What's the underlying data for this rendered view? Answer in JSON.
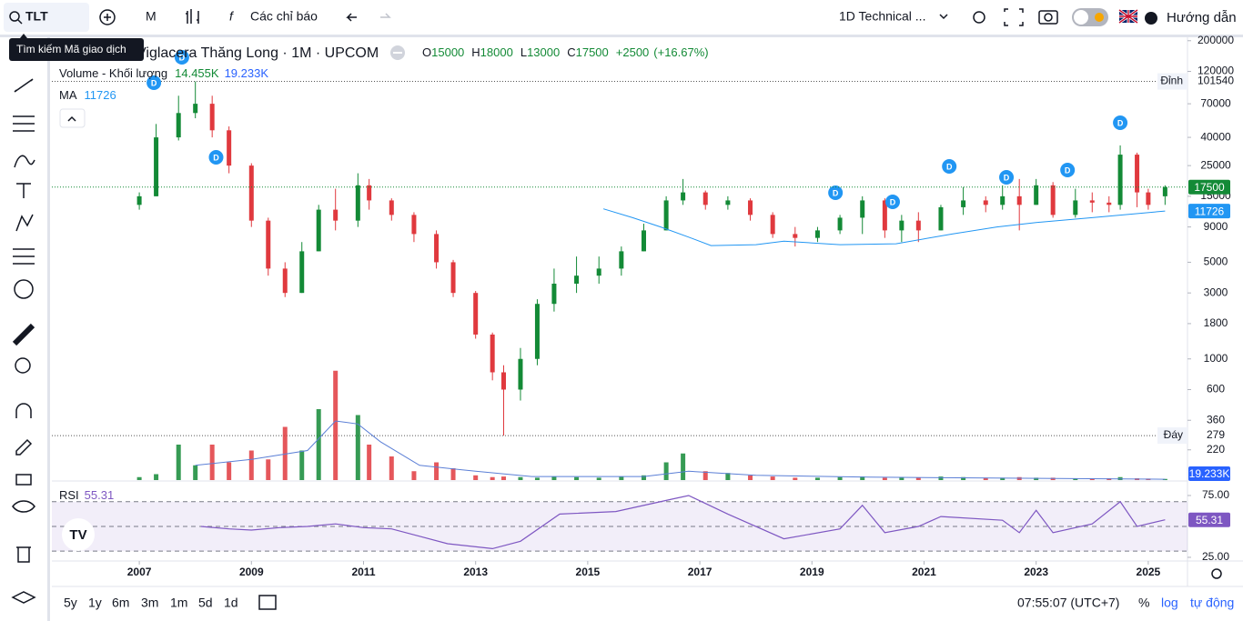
{
  "toolbar": {
    "symbol": "TLT",
    "interval": "M",
    "indicators": "Các chỉ báo",
    "layout": "1D Technical ...",
    "guide": "Hướng dẫn",
    "tooltip": "Tìm kiếm Mã giao dịch"
  },
  "bottom_bar": {
    "ranges": [
      "5y",
      "1y",
      "6m",
      "3m",
      "1m",
      "5d",
      "1d"
    ],
    "clock": "07:55:07 (UTC+7)",
    "percent": "%",
    "log": "log",
    "auto": "tự động"
  },
  "chart_data": {
    "type": "candlestick",
    "title": "Viglacera Thăng Long · 1M · UPCOM",
    "legend_letters": {
      "o": "O",
      "h": "H",
      "l": "L",
      "c": "C"
    },
    "change": {
      "value": 2500,
      "label": "+2500"
    },
    "change_pct": {
      "value": 16.67,
      "label": "(+16.67%)"
    },
    "up_color": "#138a36",
    "down_color": "#e0393e",
    "log": true,
    "xlim": [
      2005.44,
      2025.7
    ],
    "xticks": [
      2007,
      2009,
      2011,
      2013,
      2015,
      2017,
      2019,
      2021,
      2023,
      2025
    ],
    "ylim": [
      133,
      215000
    ],
    "yticks": [
      220,
      360,
      600,
      1000,
      1800,
      3000,
      5000,
      9000,
      15000,
      25000,
      40000,
      70000,
      120000,
      200000
    ],
    "x": [
      2007.0,
      2007.3,
      2007.7,
      2008.0,
      2008.3,
      2008.6,
      2009.0,
      2009.3,
      2009.6,
      2009.9,
      2010.2,
      2010.5,
      2010.9,
      2011.1,
      2011.5,
      2011.9,
      2012.3,
      2012.6,
      2013.0,
      2013.3,
      2013.5,
      2013.8,
      2014.1,
      2014.4,
      2014.8,
      2015.2,
      2015.6,
      2016.0,
      2016.4,
      2016.7,
      2017.1,
      2017.5,
      2017.9,
      2018.3,
      2018.7,
      2019.1,
      2019.5,
      2019.9,
      2020.3,
      2020.6,
      2020.9,
      2021.3,
      2021.7,
      2022.1,
      2022.4,
      2022.7,
      2023.0,
      2023.3,
      2023.7,
      2024.0,
      2024.3,
      2024.5,
      2024.8,
      2025.0,
      2025.3
    ],
    "open": [
      13000,
      15000,
      40000,
      60000,
      70000,
      45000,
      25000,
      10000,
      4500,
      3000,
      6000,
      12000,
      10000,
      18000,
      14000,
      11000,
      8000,
      5000,
      3000,
      1500,
      800,
      600,
      1000,
      2500,
      3500,
      4000,
      4500,
      6000,
      8500,
      14000,
      16000,
      13000,
      14000,
      11000,
      8000,
      7500,
      8500,
      10500,
      14000,
      8500,
      10000,
      8500,
      12500,
      14000,
      13000,
      15000,
      13000,
      18000,
      11000,
      14000,
      13500,
      13000,
      30000,
      16000,
      15000
    ],
    "high": [
      16000,
      50000,
      80000,
      101540,
      80000,
      48000,
      26000,
      10500,
      5000,
      7000,
      13000,
      17000,
      22000,
      20000,
      14500,
      11500,
      8500,
      5200,
      3100,
      1550,
      900,
      1200,
      2700,
      4500,
      5500,
      5500,
      6500,
      9500,
      15000,
      20000,
      16500,
      15000,
      14500,
      11500,
      9000,
      9000,
      11000,
      15000,
      14500,
      11000,
      11500,
      13000,
      17500,
      15000,
      18000,
      20000,
      20000,
      19000,
      17000,
      16000,
      15000,
      35000,
      31000,
      17000,
      18000
    ],
    "low": [
      12000,
      15000,
      38000,
      55000,
      40000,
      22000,
      9000,
      4000,
      2800,
      3000,
      6000,
      8500,
      9000,
      12000,
      10000,
      7000,
      4500,
      2800,
      1400,
      700,
      279,
      500,
      900,
      2200,
      3000,
      3500,
      4000,
      6000,
      8500,
      13000,
      12000,
      12000,
      10000,
      7500,
      6500,
      7000,
      8000,
      8000,
      7500,
      7000,
      7000,
      8500,
      11000,
      11500,
      12000,
      8500,
      13000,
      10500,
      10500,
      11500,
      11500,
      12000,
      12500,
      12000,
      13000
    ],
    "close": [
      15000,
      40000,
      60000,
      70000,
      45000,
      25000,
      10000,
      4500,
      3000,
      6000,
      12000,
      10000,
      18000,
      14000,
      11000,
      8000,
      5000,
      3000,
      1500,
      800,
      600,
      1000,
      2500,
      3500,
      4000,
      4500,
      6000,
      8500,
      14000,
      16000,
      13000,
      14000,
      11000,
      8000,
      7500,
      8500,
      10500,
      14000,
      8500,
      10000,
      8500,
      12500,
      14000,
      13000,
      15000,
      13000,
      18000,
      11000,
      14000,
      13500,
      13000,
      30000,
      16000,
      13000,
      17500
    ],
    "high_marker": {
      "label": "Đỉnh",
      "value": 101540
    },
    "low_marker": {
      "label": "Đáy",
      "value": 279
    },
    "dividends": {
      "label": "D",
      "x": [
        2007.26,
        2007.76,
        2008.37,
        2019.42,
        2020.44,
        2021.45,
        2022.47,
        2023.56,
        2024.5
      ]
    },
    "ma": {
      "name": "MA",
      "color": "#2196f3",
      "x": [
        2015.28,
        2015.8,
        2016.3,
        2016.8,
        2017.2,
        2018.0,
        2018.5,
        2019.5,
        2020.5,
        2021.5,
        2022.3,
        2023.0,
        2024.0,
        2025.3
      ],
      "values": [
        12170,
        10500,
        9000,
        7600,
        6600,
        6700,
        7100,
        6700,
        6800,
        8000,
        9000,
        9700,
        10500,
        11726
      ]
    },
    "volume": {
      "name": "Volume - Khối lượng",
      "ylim": [
        0,
        2000000
      ],
      "values": [
        50000,
        100000,
        600000,
        250000,
        600000,
        300000,
        500000,
        350000,
        900000,
        500000,
        1200000,
        1850000,
        1100000,
        600000,
        400000,
        150000,
        300000,
        200000,
        80000,
        50000,
        60000,
        50000,
        40000,
        60000,
        50000,
        40000,
        60000,
        80000,
        300000,
        450000,
        150000,
        120000,
        80000,
        60000,
        40000,
        40000,
        50000,
        60000,
        40000,
        50000,
        40000,
        60000,
        50000,
        40000,
        40000,
        50000,
        40000,
        40000,
        30000,
        30000,
        30000,
        50000,
        30000,
        25000,
        19233
      ],
      "last": {
        "value": 19233,
        "label": "19.233K"
      },
      "last_color": "#2962ff",
      "ma": {
        "color": "#5b7fd6",
        "x": [
          2008.0,
          2009.0,
          2010.0,
          2010.5,
          2010.9,
          2011.3,
          2012.0,
          2013.0,
          2014.0,
          2016.0,
          2016.8,
          2018.0,
          2020.0,
          2025.3
        ],
        "values": [
          250000,
          350000,
          500000,
          1000000,
          950000,
          650000,
          250000,
          150000,
          60000,
          60000,
          150000,
          80000,
          50000,
          14455
        ],
        "last": {
          "value": 14455,
          "label": "14.455K"
        }
      }
    },
    "rsi": {
      "name": "RSI",
      "color": "#7e57c2",
      "ylim": [
        21.3,
        86
      ],
      "yticks": [
        {
          "value": 25,
          "label": "25.00"
        },
        {
          "value": 75,
          "label": "75.00"
        }
      ],
      "bands": [
        30,
        50,
        70
      ],
      "x": [
        2008.1,
        2008.6,
        2009.0,
        2009.5,
        2010.0,
        2010.5,
        2011.0,
        2011.5,
        2012.0,
        2012.5,
        2013.3,
        2013.8,
        2014.5,
        2015.5,
        2016.5,
        2016.8,
        2017.5,
        2018.5,
        2019.5,
        2019.9,
        2020.3,
        2020.9,
        2021.3,
        2022.4,
        2022.7,
        2023.0,
        2023.3,
        2024.0,
        2024.5,
        2024.8,
        2025.3
      ],
      "values": [
        50,
        48,
        47,
        49,
        50,
        52,
        49,
        48,
        42,
        36,
        32,
        38,
        60,
        62,
        72,
        75,
        60,
        40,
        48,
        67,
        45,
        50,
        58,
        55,
        45,
        63,
        45,
        52,
        70,
        50,
        55.31
      ]
    }
  }
}
